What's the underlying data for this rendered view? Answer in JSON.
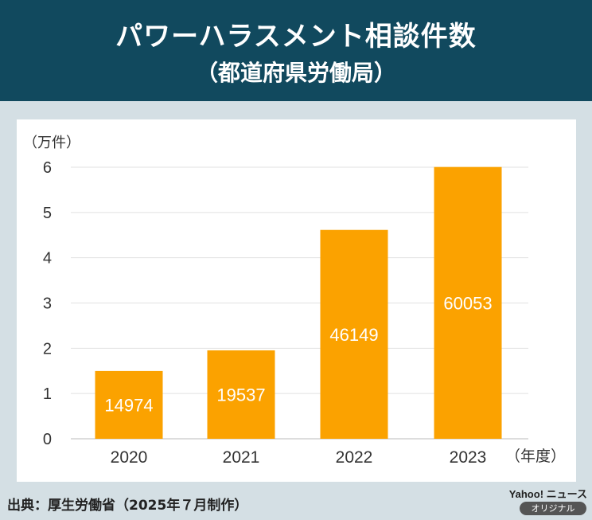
{
  "header": {
    "title": "パワーハラスメント相談件数",
    "subtitle": "（都道府県労働局）"
  },
  "footer": {
    "source": "出典：厚生労働省（2025年７月制作）",
    "logo": "Yahoo! ニュース",
    "badge": "オリジナル"
  },
  "colors": {
    "header_bg": "#11495e",
    "bar": "#fba200",
    "background": "#d4dfe4"
  },
  "chart_data": {
    "type": "bar",
    "categories": [
      "2020",
      "2021",
      "2022",
      "2023"
    ],
    "values": [
      14974,
      19537,
      46149,
      60053
    ],
    "data_labels": [
      "14974",
      "19537",
      "46149",
      "60053"
    ],
    "ylabel": "（万件）",
    "xlabel": "（年度）",
    "ylim": [
      0,
      60000
    ],
    "yticks": [
      0,
      10000,
      20000,
      30000,
      40000,
      50000,
      60000
    ],
    "ytick_labels": [
      "0",
      "1",
      "2",
      "3",
      "4",
      "5",
      "6"
    ],
    "grid": true
  }
}
